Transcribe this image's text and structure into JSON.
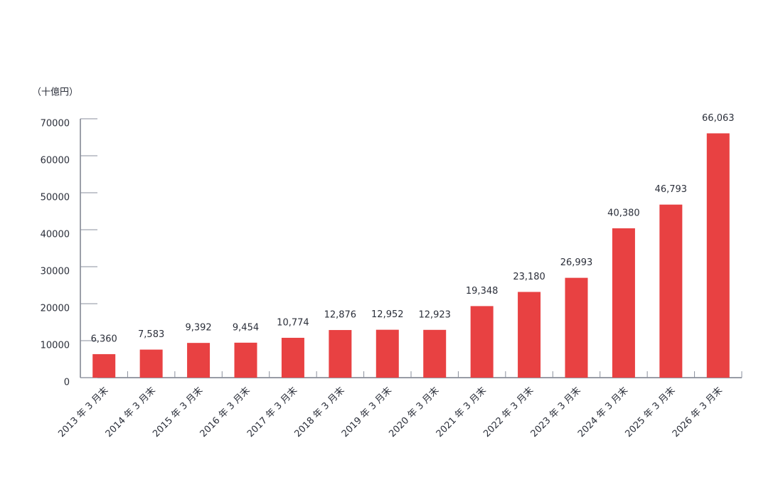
{
  "chart_data": {
    "type": "bar",
    "y_label": "（十億円）",
    "categories": [
      "2013 年 3 月末",
      "2014 年 3 月末",
      "2015 年 3 月末",
      "2016 年 3 月末",
      "2017 年 3 月末",
      "2018 年 3 月末",
      "2019 年 3 月末",
      "2020 年 3 月末",
      "2021 年 3 月末",
      "2022 年 3 月末",
      "2023 年 3 月末",
      "2024 年 3 月末",
      "2025 年 3 月末",
      "2026 年 3 月末"
    ],
    "values": [
      6360,
      7583,
      9392,
      9454,
      10774,
      12876,
      12952,
      12923,
      19348,
      23180,
      26993,
      40380,
      46793,
      66063
    ],
    "value_labels": [
      "6,360",
      "7,583",
      "9,392",
      "9,454",
      "10,774",
      "12,876",
      "12,952",
      "12,923",
      "19,348",
      "23,180",
      "26,993",
      "40,380",
      "46,793",
      "66,063"
    ],
    "color": "#e84142",
    "ylim": [
      0,
      70000
    ],
    "yticks": [
      0,
      10000,
      20000,
      30000,
      40000,
      50000,
      60000,
      70000
    ]
  }
}
